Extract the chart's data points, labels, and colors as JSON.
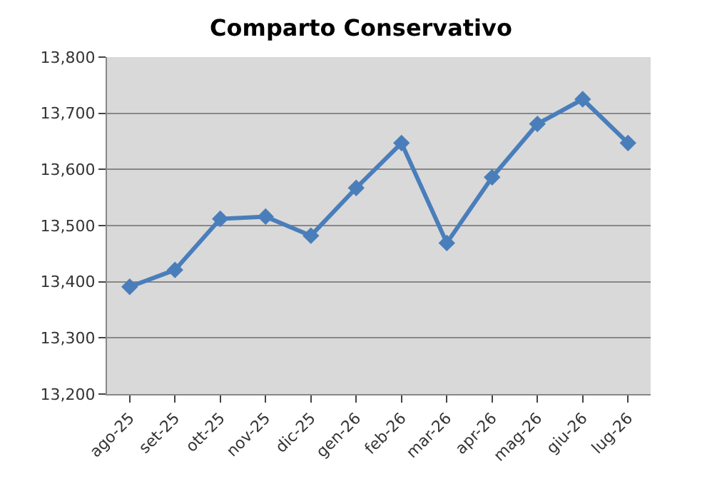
{
  "chart_data": {
    "type": "line",
    "title": "Comparto Conservativo",
    "categories": [
      "ago-25",
      "set-25",
      "ott-25",
      "nov-25",
      "dic-25",
      "gen-26",
      "feb-26",
      "mar-26",
      "apr-26",
      "mag-26",
      "giu-26",
      "lug-26"
    ],
    "series": [
      {
        "color": "#4a7ebb",
        "values": [
          13391,
          13421,
          13512,
          13516,
          13482,
          13567,
          13647,
          13469,
          13586,
          13681,
          13725,
          13647
        ]
      }
    ],
    "ylim": [
      13200,
      13800
    ],
    "yticks": [
      {
        "value": 13200,
        "label": "13,200"
      },
      {
        "value": 13300,
        "label": "13,300"
      },
      {
        "value": 13400,
        "label": "13,400"
      },
      {
        "value": 13500,
        "label": "13,500"
      },
      {
        "value": 13600,
        "label": "13,600"
      },
      {
        "value": 13700,
        "label": "13,700"
      },
      {
        "value": 13800,
        "label": "13,800"
      }
    ],
    "grid": "y",
    "marker": "diamond",
    "line_style": "solid",
    "legend": false
  }
}
